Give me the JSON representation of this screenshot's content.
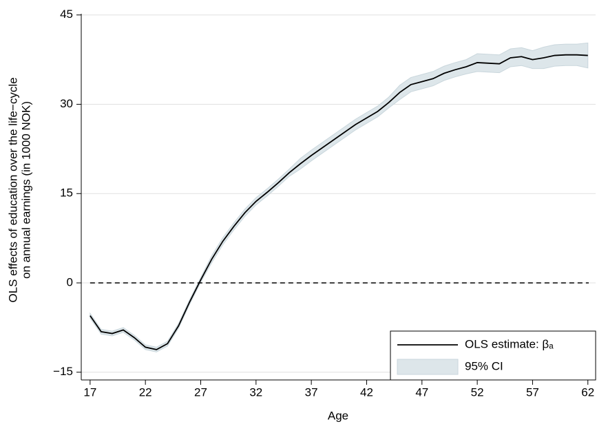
{
  "chart_data": {
    "type": "line",
    "xlabel": "Age",
    "ylabel": [
      "OLS effects of education over the life−cycle",
      "on annual earnings (in 1000 NOK)"
    ],
    "x": [
      17,
      18,
      19,
      20,
      21,
      22,
      23,
      24,
      25,
      26,
      27,
      28,
      29,
      30,
      31,
      32,
      33,
      34,
      35,
      36,
      37,
      38,
      39,
      40,
      41,
      42,
      43,
      44,
      45,
      46,
      47,
      48,
      49,
      50,
      51,
      52,
      53,
      54,
      55,
      56,
      57,
      58,
      59,
      60,
      61,
      62
    ],
    "series": [
      {
        "name": "OLS estimate: βₐ",
        "color": "#000000",
        "values": [
          -5.5,
          -8.2,
          -8.5,
          -7.9,
          -9.2,
          -10.8,
          -11.2,
          -10.2,
          -7.2,
          -3.2,
          0.5,
          4.0,
          7.0,
          9.5,
          11.8,
          13.7,
          15.2,
          16.8,
          18.5,
          20.0,
          21.4,
          22.7,
          24.0,
          25.3,
          26.6,
          27.7,
          28.8,
          30.3,
          32.0,
          33.3,
          33.8,
          34.3,
          35.2,
          35.8,
          36.3,
          37.0,
          36.9,
          36.8,
          37.8,
          38.0,
          37.5,
          37.8,
          38.2,
          38.3,
          38.3,
          38.2
        ]
      },
      {
        "name": "95% CI",
        "color": "#dde6ea",
        "lower": [
          -5.9,
          -8.6,
          -8.9,
          -8.3,
          -9.6,
          -11.2,
          -11.6,
          -10.6,
          -7.6,
          -3.6,
          0.1,
          3.4,
          6.4,
          8.9,
          11.2,
          13.1,
          14.6,
          16.2,
          17.9,
          19.1,
          20.5,
          21.8,
          23.1,
          24.4,
          25.7,
          26.8,
          27.9,
          29.4,
          30.8,
          32.1,
          32.6,
          33.1,
          34.0,
          34.6,
          35.1,
          35.5,
          35.4,
          35.3,
          36.3,
          36.5,
          36.0,
          36.0,
          36.4,
          36.5,
          36.5,
          36.1
        ],
        "upper": [
          -5.1,
          -7.8,
          -8.1,
          -7.5,
          -8.8,
          -10.4,
          -10.8,
          -9.8,
          -6.8,
          -2.8,
          0.9,
          4.6,
          7.6,
          10.1,
          12.4,
          14.3,
          15.8,
          17.4,
          19.1,
          20.9,
          22.3,
          23.6,
          24.9,
          26.2,
          27.5,
          28.6,
          29.7,
          31.2,
          33.2,
          34.5,
          35.0,
          35.5,
          36.4,
          37.0,
          37.5,
          38.5,
          38.4,
          38.3,
          39.3,
          39.5,
          39.0,
          39.6,
          40.0,
          40.1,
          40.1,
          40.3
        ]
      }
    ],
    "reference_line": 0,
    "xlim": [
      16.2,
      62.7
    ],
    "xticks": [
      17,
      22,
      27,
      32,
      37,
      42,
      47,
      52,
      57,
      62
    ],
    "ylim": [
      -16.3,
      45.2
    ],
    "yticks": [
      {
        "value": -15,
        "label": "−15"
      },
      0,
      15,
      30,
      45
    ],
    "grid": true,
    "legend": "lower right"
  }
}
